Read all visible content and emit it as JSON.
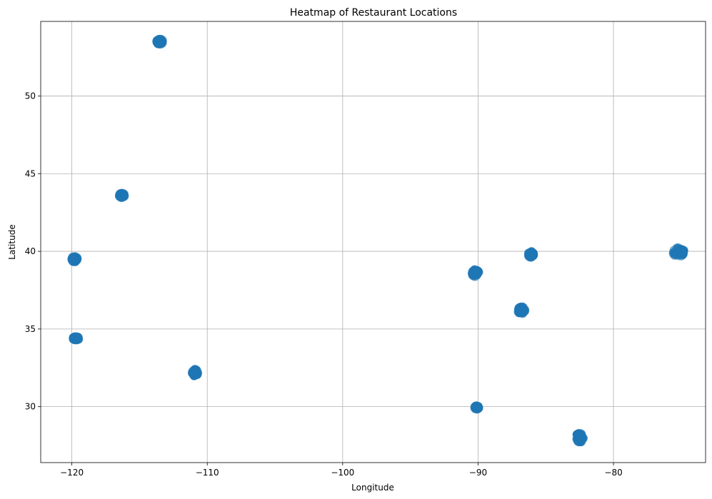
{
  "chart_data": {
    "type": "scatter",
    "title": "Heatmap of Restaurant Locations",
    "xlabel": "Longitude",
    "ylabel": "Latitude",
    "xlim": [
      -122.3,
      -73.2
    ],
    "ylim": [
      26.4,
      54.8
    ],
    "xticks": [
      -120,
      -110,
      -100,
      -90,
      -80
    ],
    "xtick_labels": [
      "−120",
      "−110",
      "−100",
      "−90",
      "−80"
    ],
    "yticks": [
      30,
      35,
      40,
      45,
      50
    ],
    "ytick_labels": [
      "30",
      "35",
      "40",
      "45",
      "50"
    ],
    "grid": true,
    "legend": "none",
    "marker_color": "#1f77b4",
    "clusters": [
      {
        "lon": -113.5,
        "lat": 53.5,
        "lon_spread": 0.25,
        "lat_spread": 0.18
      },
      {
        "lon": -116.3,
        "lat": 43.6,
        "lon_spread": 0.22,
        "lat_spread": 0.15
      },
      {
        "lon": -119.8,
        "lat": 39.5,
        "lon_spread": 0.22,
        "lat_spread": 0.2
      },
      {
        "lon": -119.7,
        "lat": 34.4,
        "lon_spread": 0.25,
        "lat_spread": 0.12
      },
      {
        "lon": -110.9,
        "lat": 32.2,
        "lon_spread": 0.22,
        "lat_spread": 0.25
      },
      {
        "lon": -90.2,
        "lat": 38.6,
        "lon_spread": 0.28,
        "lat_spread": 0.25
      },
      {
        "lon": -86.1,
        "lat": 39.8,
        "lon_spread": 0.22,
        "lat_spread": 0.2
      },
      {
        "lon": -86.8,
        "lat": 36.2,
        "lon_spread": 0.28,
        "lat_spread": 0.25
      },
      {
        "lon": -75.2,
        "lat": 39.95,
        "lon_spread": 0.45,
        "lat_spread": 0.3
      },
      {
        "lon": -90.1,
        "lat": 29.95,
        "lon_spread": 0.18,
        "lat_spread": 0.12
      },
      {
        "lon": -82.5,
        "lat": 28.0,
        "lon_spread": 0.3,
        "lat_spread": 0.32
      }
    ]
  }
}
